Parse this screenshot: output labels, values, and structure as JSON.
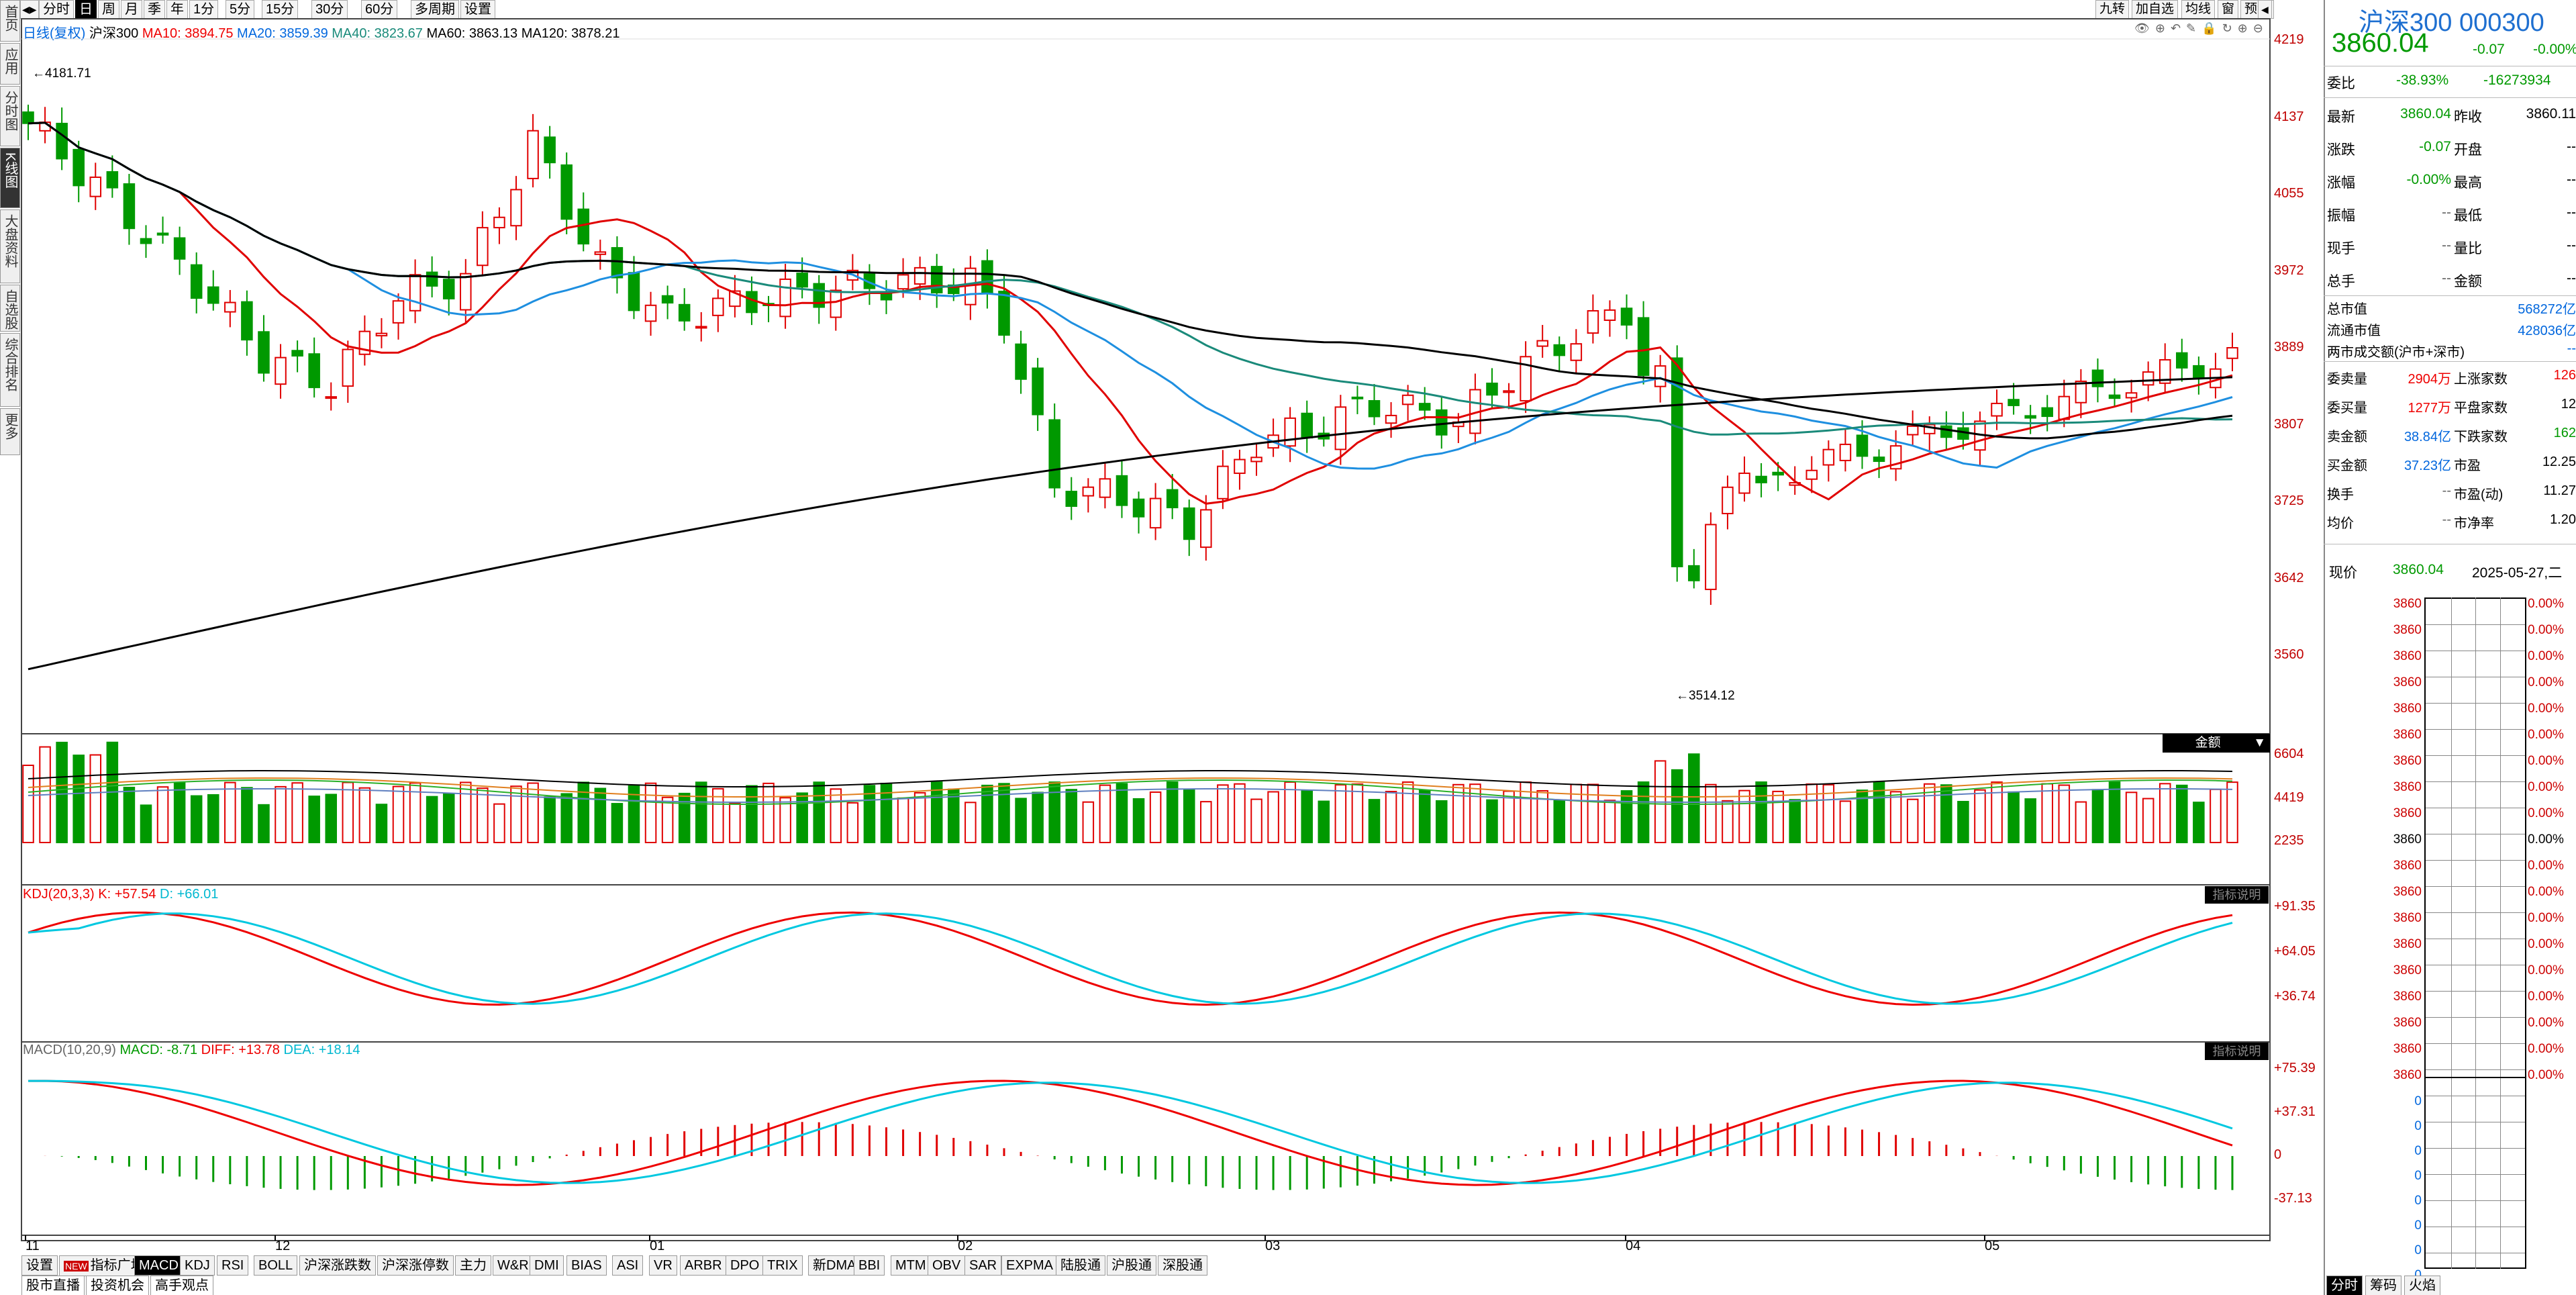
{
  "toolbar": {
    "period_tabs": [
      "分时",
      "日",
      "周",
      "月",
      "季",
      "年",
      "1分",
      "5分",
      "15分",
      "30分",
      "60分",
      "多周期",
      "设置"
    ],
    "active_period": "日",
    "right_tabs": [
      "九转",
      "加自选",
      "均线",
      "窗",
      "预测"
    ]
  },
  "left_tabs": [
    "首页",
    "应用",
    "分时图",
    "K线图",
    "大盘资料",
    "自选股",
    "综合排名",
    "更多"
  ],
  "active_left_tab": "K线图",
  "ma_legend": {
    "name": "日线(复权)",
    "symbol": "沪深300",
    "ma10": "MA10: 3894.75",
    "ma20": "MA20: 3859.39",
    "ma40": "MA40: 3823.67",
    "ma60": "MA60: 3863.13",
    "ma120": "MA120: 3878.21"
  },
  "price_axis": [
    "4219",
    "4137",
    "4055",
    "3972",
    "3889",
    "3807",
    "3725",
    "3642",
    "3560"
  ],
  "annotations": {
    "high": "4181.71",
    "low": "3514.12"
  },
  "volume": {
    "indicator_label": "金额",
    "axis": [
      "6604",
      "4419",
      "2235"
    ]
  },
  "kdj": {
    "label": "KDJ(20,3,3)",
    "k": "K: +57.54",
    "d": "D: +66.01",
    "button": "指标说明",
    "axis": [
      "+91.35",
      "+64.05",
      "+36.74"
    ]
  },
  "macd": {
    "label": "MACD(10,20,9)",
    "macd": "MACD: -8.71",
    "diff": "DIFF: +13.78",
    "dea": "DEA: +18.14",
    "button": "指标说明",
    "axis": [
      "+75.39",
      "+37.31",
      "0",
      "-37.13"
    ]
  },
  "x_axis": [
    "11",
    "12",
    "01",
    "02",
    "03",
    "04",
    "05"
  ],
  "bottom_tabs": [
    "设置",
    "NEW 指标广场",
    "MACD",
    "KDJ",
    "RSI",
    "BOLL",
    "沪深涨跌数",
    "沪深涨停数",
    "主力",
    "W&R",
    "DMI",
    "BIAS",
    "ASI",
    "VR",
    "ARBR",
    "DPO",
    "TRIX",
    "新DMA",
    "BBI",
    "MTM",
    "OBV",
    "SAR",
    "EXPMA",
    "陆股通",
    "沪股通",
    "深股通"
  ],
  "active_bottom_tab": "MACD",
  "bottom_tabs2": [
    "股市直播",
    "投资机会",
    "高手观点"
  ],
  "quote": {
    "title": "沪深300 000300",
    "price": "3860.04",
    "change": "-0.07",
    "change_pct": "-0.00%",
    "weibi_label": "委比",
    "weibi": "-38.93%",
    "weicha": "-16273934",
    "rows": [
      [
        "最新",
        "3860.04",
        "昨收",
        "3860.11"
      ],
      [
        "涨跌",
        "-0.07",
        "开盘",
        "--"
      ],
      [
        "涨幅",
        "-0.00%",
        "最高",
        "--"
      ],
      [
        "振幅",
        "--",
        "最低",
        "--"
      ],
      [
        "现手",
        "--",
        "量比",
        "--"
      ],
      [
        "总手",
        "--",
        "金额",
        "--"
      ]
    ],
    "mktcap": [
      [
        "总市值",
        "568272亿"
      ],
      [
        "流通市值",
        "428036亿"
      ],
      [
        "两市成交额(沪市+深市)",
        "--"
      ]
    ],
    "rows2": [
      [
        "委卖量",
        "2904万",
        "上涨家数",
        "126"
      ],
      [
        "委买量",
        "1277万",
        "平盘家数",
        "12"
      ],
      [
        "卖金额",
        "38.84亿",
        "下跌家数",
        "162"
      ],
      [
        "买金额",
        "37.23亿",
        "市盈",
        "12.25"
      ],
      [
        "换手",
        "--",
        "市盈(动)",
        "11.27"
      ],
      [
        "均价",
        "--",
        "市净率",
        "1.20"
      ]
    ],
    "current_label": "现价",
    "current_price": "3860.04",
    "date": "2025-05-27,二",
    "grid_prices": [
      "3860",
      "3860",
      "3860",
      "3860",
      "3860",
      "3860",
      "3860",
      "3860",
      "3860",
      "3860",
      "3860",
      "3860",
      "3860",
      "3860",
      "3860",
      "3860",
      "3860",
      "3860",
      "3860"
    ],
    "grid_pcts": [
      "0.00%",
      "0.00%",
      "0.00%",
      "0.00%",
      "0.00%",
      "0.00%",
      "0.00%",
      "0.00%",
      "0.00%",
      "0.00%",
      "0.00%",
      "0.00%",
      "0.00%",
      "0.00%",
      "0.00%",
      "0.00%",
      "0.00%",
      "0.00%",
      "0.00%"
    ],
    "grid_zero": [
      "0",
      "0",
      "0",
      "0",
      "0",
      "0",
      "0",
      "0"
    ],
    "bottom_tabs": [
      "分时",
      "筹码",
      "火焰"
    ]
  },
  "colors": {
    "up": "#e00000",
    "down": "#009900",
    "ma10": "#e00000",
    "ma20": "#1e8fe0",
    "ma40": "#1a8a7a",
    "ma60": "#000000",
    "ma120": "#000000"
  }
}
